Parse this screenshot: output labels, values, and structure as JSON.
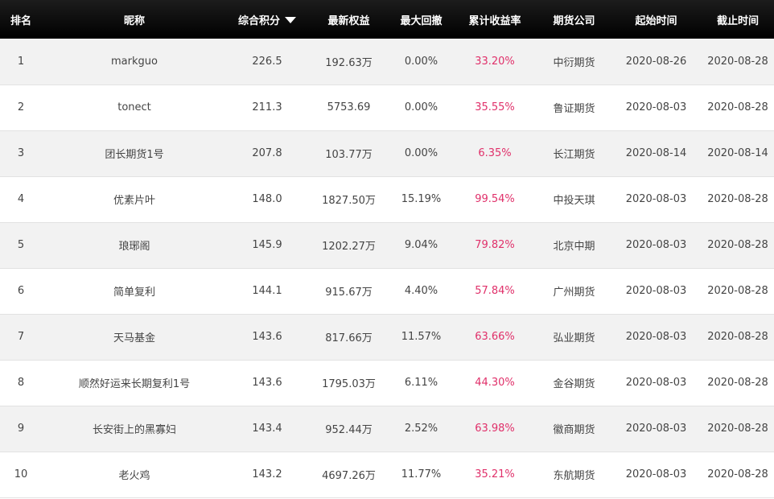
{
  "headers": {
    "rank": "排名",
    "nickname": "昵称",
    "score": "综合积分",
    "equity": "最新权益",
    "drawdown": "最大回撤",
    "return_rate": "累计收益率",
    "broker": "期货公司",
    "start": "起始时间",
    "end": "截止时间"
  },
  "colors": {
    "header_bg": "#000000",
    "return_text": "#e0306a",
    "odd_row": "#f2f2f2"
  },
  "rows": [
    {
      "rank": "1",
      "nickname": "markguo",
      "score": "226.5",
      "equity": "192.63万",
      "drawdown": "0.00%",
      "return_rate": "33.20%",
      "broker": "中衍期货",
      "start": "2020-08-26",
      "end": "2020-08-28"
    },
    {
      "rank": "2",
      "nickname": "tonect",
      "score": "211.3",
      "equity": "5753.69",
      "drawdown": "0.00%",
      "return_rate": "35.55%",
      "broker": "鲁证期货",
      "start": "2020-08-03",
      "end": "2020-08-28"
    },
    {
      "rank": "3",
      "nickname": "团长期货1号",
      "score": "207.8",
      "equity": "103.77万",
      "drawdown": "0.00%",
      "return_rate": "6.35%",
      "broker": "长江期货",
      "start": "2020-08-14",
      "end": "2020-08-14"
    },
    {
      "rank": "4",
      "nickname": "优素片叶",
      "score": "148.0",
      "equity": "1827.50万",
      "drawdown": "15.19%",
      "return_rate": "99.54%",
      "broker": "中投天琪",
      "start": "2020-08-03",
      "end": "2020-08-28"
    },
    {
      "rank": "5",
      "nickname": "琅琊阁",
      "score": "145.9",
      "equity": "1202.27万",
      "drawdown": "9.04%",
      "return_rate": "79.82%",
      "broker": "北京中期",
      "start": "2020-08-03",
      "end": "2020-08-28"
    },
    {
      "rank": "6",
      "nickname": "简单复利",
      "score": "144.1",
      "equity": "915.67万",
      "drawdown": "4.40%",
      "return_rate": "57.84%",
      "broker": "广州期货",
      "start": "2020-08-03",
      "end": "2020-08-28"
    },
    {
      "rank": "7",
      "nickname": "天马基金",
      "score": "143.6",
      "equity": "817.66万",
      "drawdown": "11.57%",
      "return_rate": "63.66%",
      "broker": "弘业期货",
      "start": "2020-08-03",
      "end": "2020-08-28"
    },
    {
      "rank": "8",
      "nickname": "顺然好运来长期复利1号",
      "score": "143.6",
      "equity": "1795.03万",
      "drawdown": "6.11%",
      "return_rate": "44.30%",
      "broker": "金谷期货",
      "start": "2020-08-03",
      "end": "2020-08-28"
    },
    {
      "rank": "9",
      "nickname": "长安街上的黑寡妇",
      "score": "143.4",
      "equity": "952.44万",
      "drawdown": "2.52%",
      "return_rate": "63.98%",
      "broker": "徽商期货",
      "start": "2020-08-03",
      "end": "2020-08-28"
    },
    {
      "rank": "10",
      "nickname": "老火鸡",
      "score": "143.2",
      "equity": "4697.26万",
      "drawdown": "11.77%",
      "return_rate": "35.21%",
      "broker": "东航期货",
      "start": "2020-08-03",
      "end": "2020-08-28"
    }
  ]
}
